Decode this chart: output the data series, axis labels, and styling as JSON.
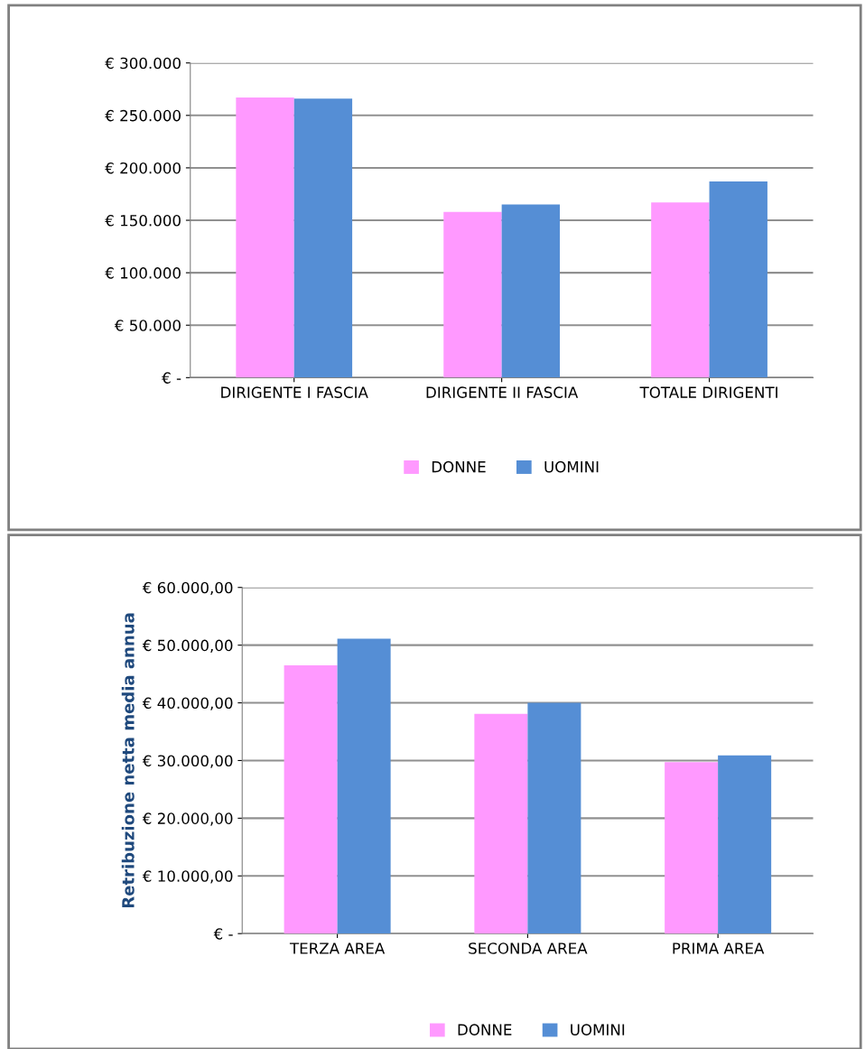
{
  "chart_data": [
    {
      "type": "bar",
      "categories": [
        "DIRIGENTE I FASCIA",
        "DIRIGENTE II FASCIA",
        "TOTALE DIRIGENTI"
      ],
      "series": [
        {
          "name": "DONNE",
          "color": "#ff99ff",
          "values": [
            267000,
            158000,
            167000
          ]
        },
        {
          "name": "UOMINI",
          "color": "#558ed5",
          "values": [
            266000,
            165000,
            187000
          ]
        }
      ],
      "ylim": [
        0,
        300000
      ],
      "yticks": [
        {
          "value": 0,
          "label": "€ -"
        },
        {
          "value": 50000,
          "label": "€ 50.000"
        },
        {
          "value": 100000,
          "label": "€ 100.000"
        },
        {
          "value": 150000,
          "label": "€ 150.000"
        },
        {
          "value": 200000,
          "label": "€ 200.000"
        },
        {
          "value": 250000,
          "label": "€ 250.000"
        },
        {
          "value": 300000,
          "label": "€ 300.000"
        }
      ],
      "grid": "y",
      "legend": "bottom"
    },
    {
      "type": "bar",
      "ylabel": "Retribuzione netta media annua",
      "categories": [
        "TERZA AREA",
        "SECONDA AREA",
        "PRIMA AREA"
      ],
      "series": [
        {
          "name": "DONNE",
          "color": "#ff99ff",
          "values": [
            46500,
            38100,
            29700
          ]
        },
        {
          "name": "UOMINI",
          "color": "#558ed5",
          "values": [
            51100,
            40000,
            30900
          ]
        }
      ],
      "ylim": [
        0,
        60000
      ],
      "yticks": [
        {
          "value": 0,
          "label": "€ -"
        },
        {
          "value": 10000,
          "label": "€ 10.000,00"
        },
        {
          "value": 20000,
          "label": "€ 20.000,00"
        },
        {
          "value": 30000,
          "label": "€ 30.000,00"
        },
        {
          "value": 40000,
          "label": "€ 40.000,00"
        },
        {
          "value": 50000,
          "label": "€ 50.000,00"
        },
        {
          "value": 60000,
          "label": "€ 60.000,00"
        }
      ],
      "grid": "y",
      "legend": "bottom"
    }
  ]
}
